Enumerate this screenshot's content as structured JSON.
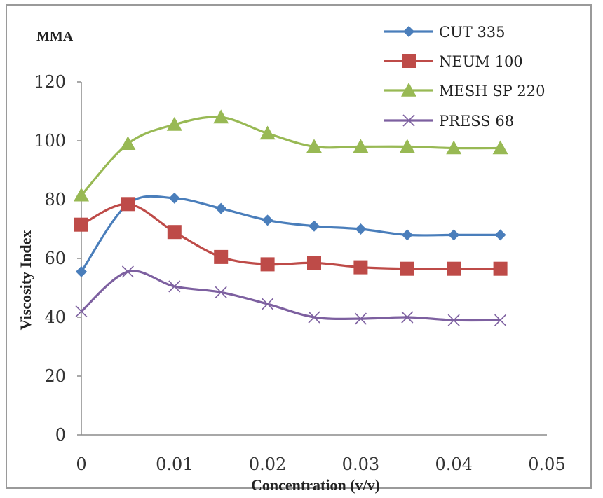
{
  "chart_data": {
    "type": "line",
    "title": "MMA",
    "xlabel": "Concentration (v/v)",
    "ylabel": "Viscosity Index",
    "xlim": [
      0,
      0.05
    ],
    "ylim": [
      0,
      120
    ],
    "x_ticks": [
      0,
      0.01,
      0.02,
      0.03,
      0.04,
      0.05
    ],
    "y_ticks": [
      0,
      20,
      40,
      60,
      80,
      100,
      120
    ],
    "x_tick_labels": [
      "0",
      "0.01",
      "0.02",
      "0.03",
      "0.04",
      "0.05"
    ],
    "y_tick_labels": [
      "0",
      "20",
      "40",
      "60",
      "80",
      "100",
      "120"
    ],
    "x": [
      0,
      0.005,
      0.01,
      0.015,
      0.02,
      0.025,
      0.03,
      0.035,
      0.04,
      0.045
    ],
    "legend_position": "top-right",
    "series": [
      {
        "name": "CUT 335",
        "color": "#4a7ebb",
        "marker": "diamond",
        "values": [
          55.5,
          78.5,
          80.5,
          77,
          73,
          71,
          70,
          68,
          68,
          68
        ]
      },
      {
        "name": "NEUM 100",
        "color": "#be4b48",
        "marker": "square",
        "values": [
          71.5,
          78.5,
          69,
          60.5,
          58,
          58.5,
          57,
          56.5,
          56.5,
          56.5
        ]
      },
      {
        "name": "MESH SP 220",
        "color": "#98b954",
        "marker": "triangle",
        "values": [
          81.5,
          99,
          105.5,
          108,
          102.5,
          98,
          98,
          98,
          97.5,
          97.5
        ]
      },
      {
        "name": "PRESS 68",
        "color": "#7d60a0",
        "marker": "x",
        "values": [
          42,
          55.5,
          50.5,
          48.5,
          44.5,
          40,
          39.5,
          40,
          39,
          39
        ]
      }
    ]
  }
}
